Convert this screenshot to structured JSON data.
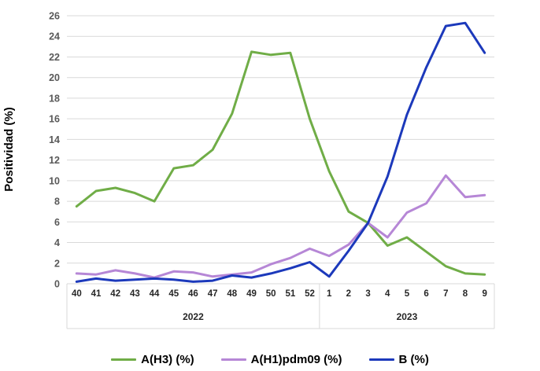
{
  "chart_data": {
    "type": "line",
    "title": "",
    "ylabel": "Positividad (%)",
    "ylim": [
      0,
      26
    ],
    "ytick_step": 2,
    "grid": "horizontal",
    "legend_position": "bottom",
    "categories": [
      "40",
      "41",
      "42",
      "43",
      "44",
      "45",
      "46",
      "47",
      "48",
      "49",
      "50",
      "51",
      "52",
      "1",
      "2",
      "3",
      "4",
      "5",
      "6",
      "7",
      "8",
      "9"
    ],
    "year_groups": [
      {
        "label": "2022",
        "count": 13
      },
      {
        "label": "2023",
        "count": 9
      }
    ],
    "series": [
      {
        "name": "A(H3) (%)",
        "color": "#70AD47",
        "values": [
          7.5,
          9.0,
          9.3,
          8.8,
          8.0,
          11.2,
          11.5,
          13.0,
          16.5,
          22.5,
          22.2,
          22.4,
          16.0,
          10.9,
          7.0,
          5.9,
          3.7,
          4.5,
          3.1,
          1.7,
          1.0,
          0.9
        ]
      },
      {
        "name": "A(H1)pdm09 (%)",
        "color": "#B687D6",
        "values": [
          1.0,
          0.9,
          1.3,
          1.0,
          0.6,
          1.2,
          1.1,
          0.7,
          0.9,
          1.1,
          1.9,
          2.5,
          3.4,
          2.7,
          3.8,
          5.9,
          4.5,
          6.9,
          7.8,
          10.5,
          8.4,
          8.6
        ]
      },
      {
        "name": "B (%)",
        "color": "#1C39BB",
        "values": [
          0.2,
          0.5,
          0.3,
          0.4,
          0.5,
          0.4,
          0.2,
          0.3,
          0.8,
          0.6,
          1.0,
          1.5,
          2.1,
          0.7,
          3.2,
          5.9,
          10.4,
          16.4,
          21.0,
          25.0,
          25.3,
          22.4
        ]
      }
    ],
    "colors": {
      "gridline": "#D9D9D9",
      "axis_band_line": "#D9D9D9",
      "ytick_text": "#595959",
      "xtick_text": "#262626"
    }
  }
}
